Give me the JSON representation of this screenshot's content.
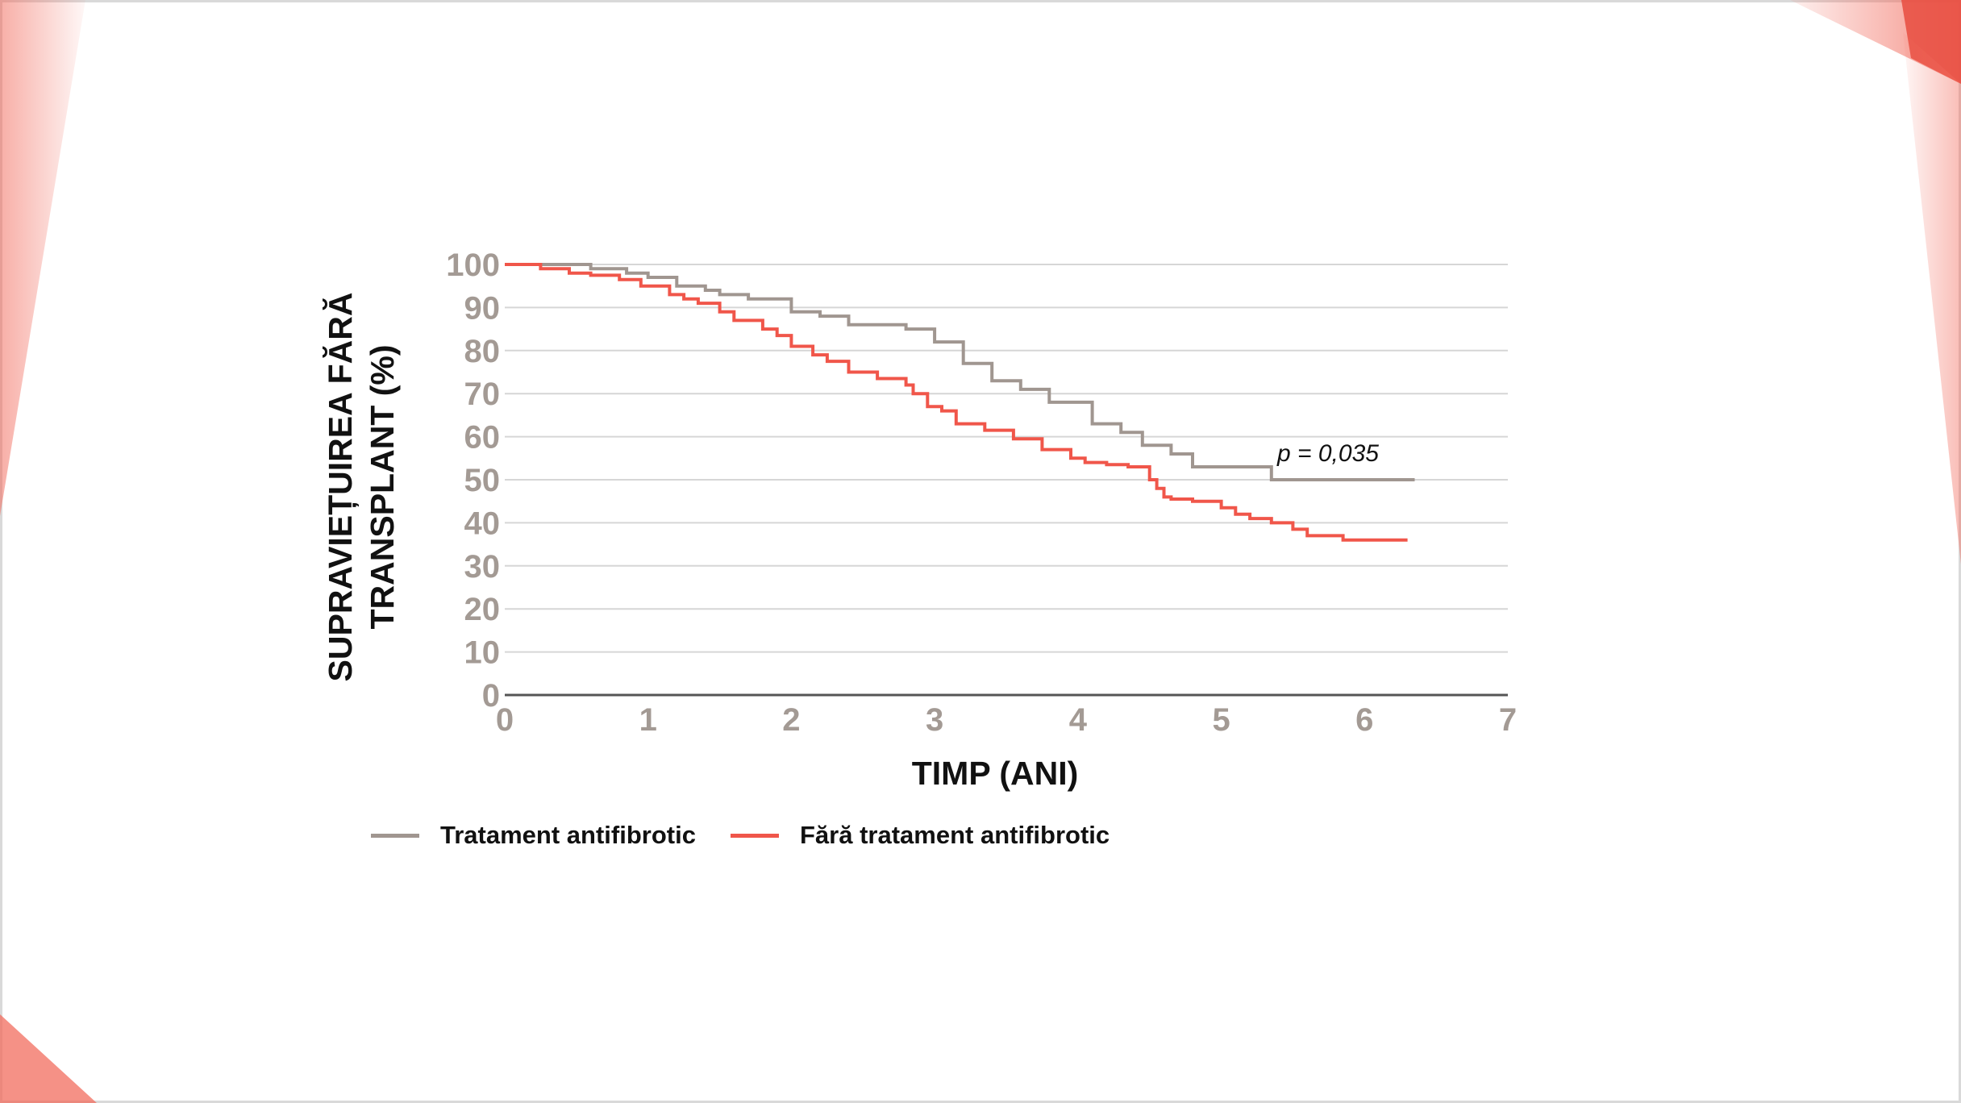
{
  "chart_data": {
    "type": "line",
    "title": "",
    "ylabel": "SUPRAVIEȚUIREA FĂRĂ TRANSPLANT (%)",
    "xlabel": "TIMP (ANI)",
    "ylim": [
      0,
      100
    ],
    "xlim": [
      0,
      7
    ],
    "yticks": [
      "0",
      "10",
      "20",
      "30",
      "40",
      "50",
      "60",
      "70",
      "80",
      "90",
      "100"
    ],
    "xticks": [
      "0",
      "1",
      "2",
      "3",
      "4",
      "5",
      "6",
      "7"
    ],
    "grid": true,
    "legend_position": "bottom-left",
    "annotation": "p = 0,035",
    "series": [
      {
        "name": "Tratament antifibrotic",
        "color": "#a09690",
        "x": [
          0,
          0.25,
          0.6,
          0.85,
          1.0,
          1.2,
          1.4,
          1.5,
          1.7,
          2.0,
          2.2,
          2.4,
          2.6,
          2.8,
          3.0,
          3.2,
          3.4,
          3.6,
          3.8,
          4.1,
          4.3,
          4.45,
          4.65,
          4.8,
          5.35,
          6.35
        ],
        "values": [
          100,
          100,
          99,
          98,
          97,
          95,
          94,
          93,
          92,
          89,
          88,
          86,
          86,
          85,
          82,
          77,
          73,
          71,
          68,
          63,
          61,
          58,
          56,
          53,
          50,
          50
        ]
      },
      {
        "name": "Fără tratament antifibrotic",
        "color": "#f0564a",
        "x": [
          0,
          0.25,
          0.45,
          0.6,
          0.8,
          0.95,
          1.15,
          1.25,
          1.35,
          1.5,
          1.6,
          1.8,
          1.9,
          2.0,
          2.15,
          2.25,
          2.4,
          2.6,
          2.8,
          2.85,
          2.95,
          3.05,
          3.15,
          3.35,
          3.55,
          3.75,
          3.95,
          4.05,
          4.2,
          4.35,
          4.5,
          4.55,
          4.6,
          4.65,
          4.8,
          5.0,
          5.1,
          5.2,
          5.35,
          5.5,
          5.6,
          5.85,
          6.3
        ],
        "values": [
          100,
          99,
          98,
          97.5,
          96.5,
          95,
          93,
          92,
          91,
          89,
          87,
          85,
          83.5,
          81,
          79,
          77.5,
          75,
          73.5,
          72,
          70,
          67,
          66,
          63,
          61.5,
          59.5,
          57,
          55,
          54,
          53.5,
          53,
          50,
          48,
          46,
          45.5,
          45,
          43.5,
          42,
          41,
          40,
          38.5,
          37,
          36,
          36
        ]
      }
    ]
  },
  "legend": {
    "items": [
      {
        "label": "Tratament antifibrotic",
        "color": "#a09690"
      },
      {
        "label": "Fără tratament antifibrotic",
        "color": "#f0564a"
      }
    ]
  },
  "theme": {
    "tick_color": "#a39a94",
    "grid_color": "#d6d6d6",
    "axis_color": "#555555",
    "accent": "#f26c5e"
  }
}
